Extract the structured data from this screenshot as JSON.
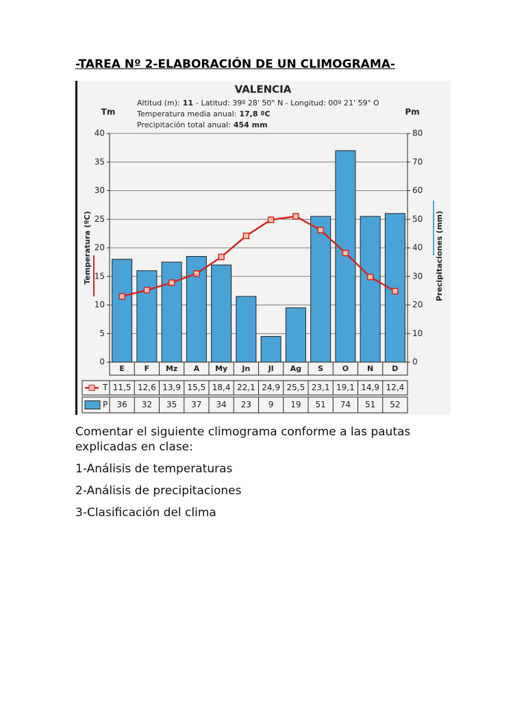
{
  "title": "-TAREA Nº 2-ELABORACIÓN DE UN CLIMOGRAMA-",
  "chart_data": {
    "type": "climograph",
    "title": "VALENCIA",
    "info": [
      [
        "Altitud (m):",
        "11",
        "- Latitud: 39º 28' 50\" N - Longitud: 00º 21' 59\" O"
      ],
      [
        "Temperatura media anual:",
        "17,8 ºC"
      ],
      [
        "Precipitación total anual:",
        "454 mm"
      ]
    ],
    "y_unit": "Tm",
    "y2_unit": "Pm",
    "y_label": "Temperatura (ºC)",
    "y2_label": "Precipitaciones (mm)",
    "categories": [
      "E",
      "F",
      "Mz",
      "A",
      "My",
      "Jn",
      "Jl",
      "Ag",
      "S",
      "O",
      "N",
      "D"
    ],
    "series": [
      {
        "name": "P",
        "kind": "bar",
        "axis": "y2",
        "color": "#4aa3d6",
        "values": [
          36,
          32,
          35,
          37,
          34,
          23,
          9,
          19,
          51,
          74,
          51,
          52
        ],
        "value_labels": [
          "36",
          "32",
          "35",
          "37",
          "34",
          "23",
          "9",
          "19",
          "51",
          "74",
          "51",
          "52"
        ]
      },
      {
        "name": "T",
        "kind": "line",
        "axis": "y",
        "color": "#d42424",
        "values": [
          11.5,
          12.6,
          13.9,
          15.5,
          18.4,
          22.1,
          24.9,
          25.5,
          23.1,
          19.1,
          14.9,
          12.4
        ],
        "value_labels": [
          "11,5",
          "12,6",
          "13,9",
          "15,5",
          "18,4",
          "22,1",
          "24,9",
          "25,5",
          "23,1",
          "19,1",
          "14,9",
          "12,4"
        ]
      }
    ],
    "ylim": [
      0,
      40
    ],
    "yticks": [
      0,
      5,
      10,
      15,
      20,
      25,
      30,
      35,
      40
    ],
    "y2lim": [
      0,
      80
    ],
    "y2ticks": [
      0,
      10,
      20,
      30,
      40,
      50,
      60,
      70,
      80
    ],
    "grid": true
  },
  "paragraphs": [
    "Comentar el siguiente climograma conforme a las pautas explicadas en clase:",
    "1-Análisis de temperaturas",
    "2-Análisis de precipitaciones",
    "3-Clasificación del clima"
  ]
}
